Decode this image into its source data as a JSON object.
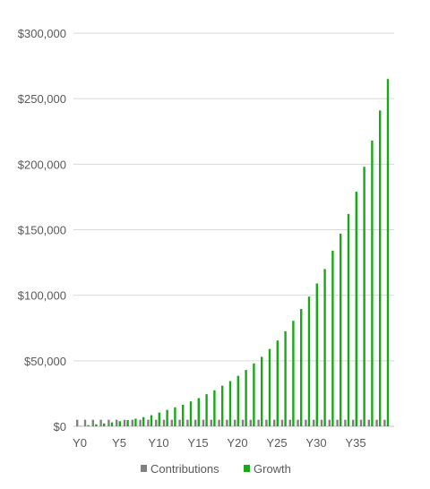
{
  "chart_data": {
    "type": "bar",
    "title": "",
    "xlabel": "",
    "ylabel": "",
    "ylim": [
      0,
      300000
    ],
    "y_ticks": [
      0,
      50000,
      100000,
      150000,
      200000,
      250000,
      300000
    ],
    "y_tick_labels": [
      "$0",
      "$50,000",
      "$100,000",
      "$150,000",
      "$200,000",
      "$250,000",
      "$300,000"
    ],
    "categories": [
      "Y0",
      "Y1",
      "Y2",
      "Y3",
      "Y4",
      "Y5",
      "Y6",
      "Y7",
      "Y8",
      "Y9",
      "Y10",
      "Y11",
      "Y12",
      "Y13",
      "Y14",
      "Y15",
      "Y16",
      "Y17",
      "Y18",
      "Y19",
      "Y20",
      "Y21",
      "Y22",
      "Y23",
      "Y24",
      "Y25",
      "Y26",
      "Y27",
      "Y28",
      "Y29",
      "Y30",
      "Y31",
      "Y32",
      "Y33",
      "Y34",
      "Y35",
      "Y36",
      "Y37",
      "Y38",
      "Y39"
    ],
    "x_tick_labels": [
      "Y0",
      "Y5",
      "Y10",
      "Y15",
      "Y20",
      "Y25",
      "Y30",
      "Y35"
    ],
    "series": [
      {
        "name": "Contributions",
        "color": "#808080",
        "values": [
          5000,
          5000,
          5000,
          5000,
          5000,
          5000,
          5000,
          5000,
          5000,
          5000,
          5000,
          5000,
          5000,
          5000,
          5000,
          5000,
          5000,
          5000,
          5000,
          5000,
          5000,
          5000,
          5000,
          5000,
          5000,
          5000,
          5000,
          5000,
          5000,
          5000,
          5000,
          5000,
          5000,
          5000,
          5000,
          5000,
          5000,
          5000,
          5000,
          5000
        ]
      },
      {
        "name": "Growth",
        "color": "#1aa81a",
        "values": [
          300,
          900,
          1500,
          2200,
          3000,
          3900,
          4800,
          5800,
          7000,
          8500,
          10500,
          12500,
          14500,
          16500,
          19000,
          21500,
          24500,
          27500,
          31000,
          34500,
          38500,
          43000,
          48000,
          53000,
          59000,
          65500,
          72500,
          80500,
          89500,
          99000,
          109000,
          120000,
          134000,
          147000,
          162000,
          179000,
          198000,
          218000,
          241000,
          265000
        ]
      }
    ],
    "legend": {
      "position": "bottom"
    },
    "grid": true
  }
}
